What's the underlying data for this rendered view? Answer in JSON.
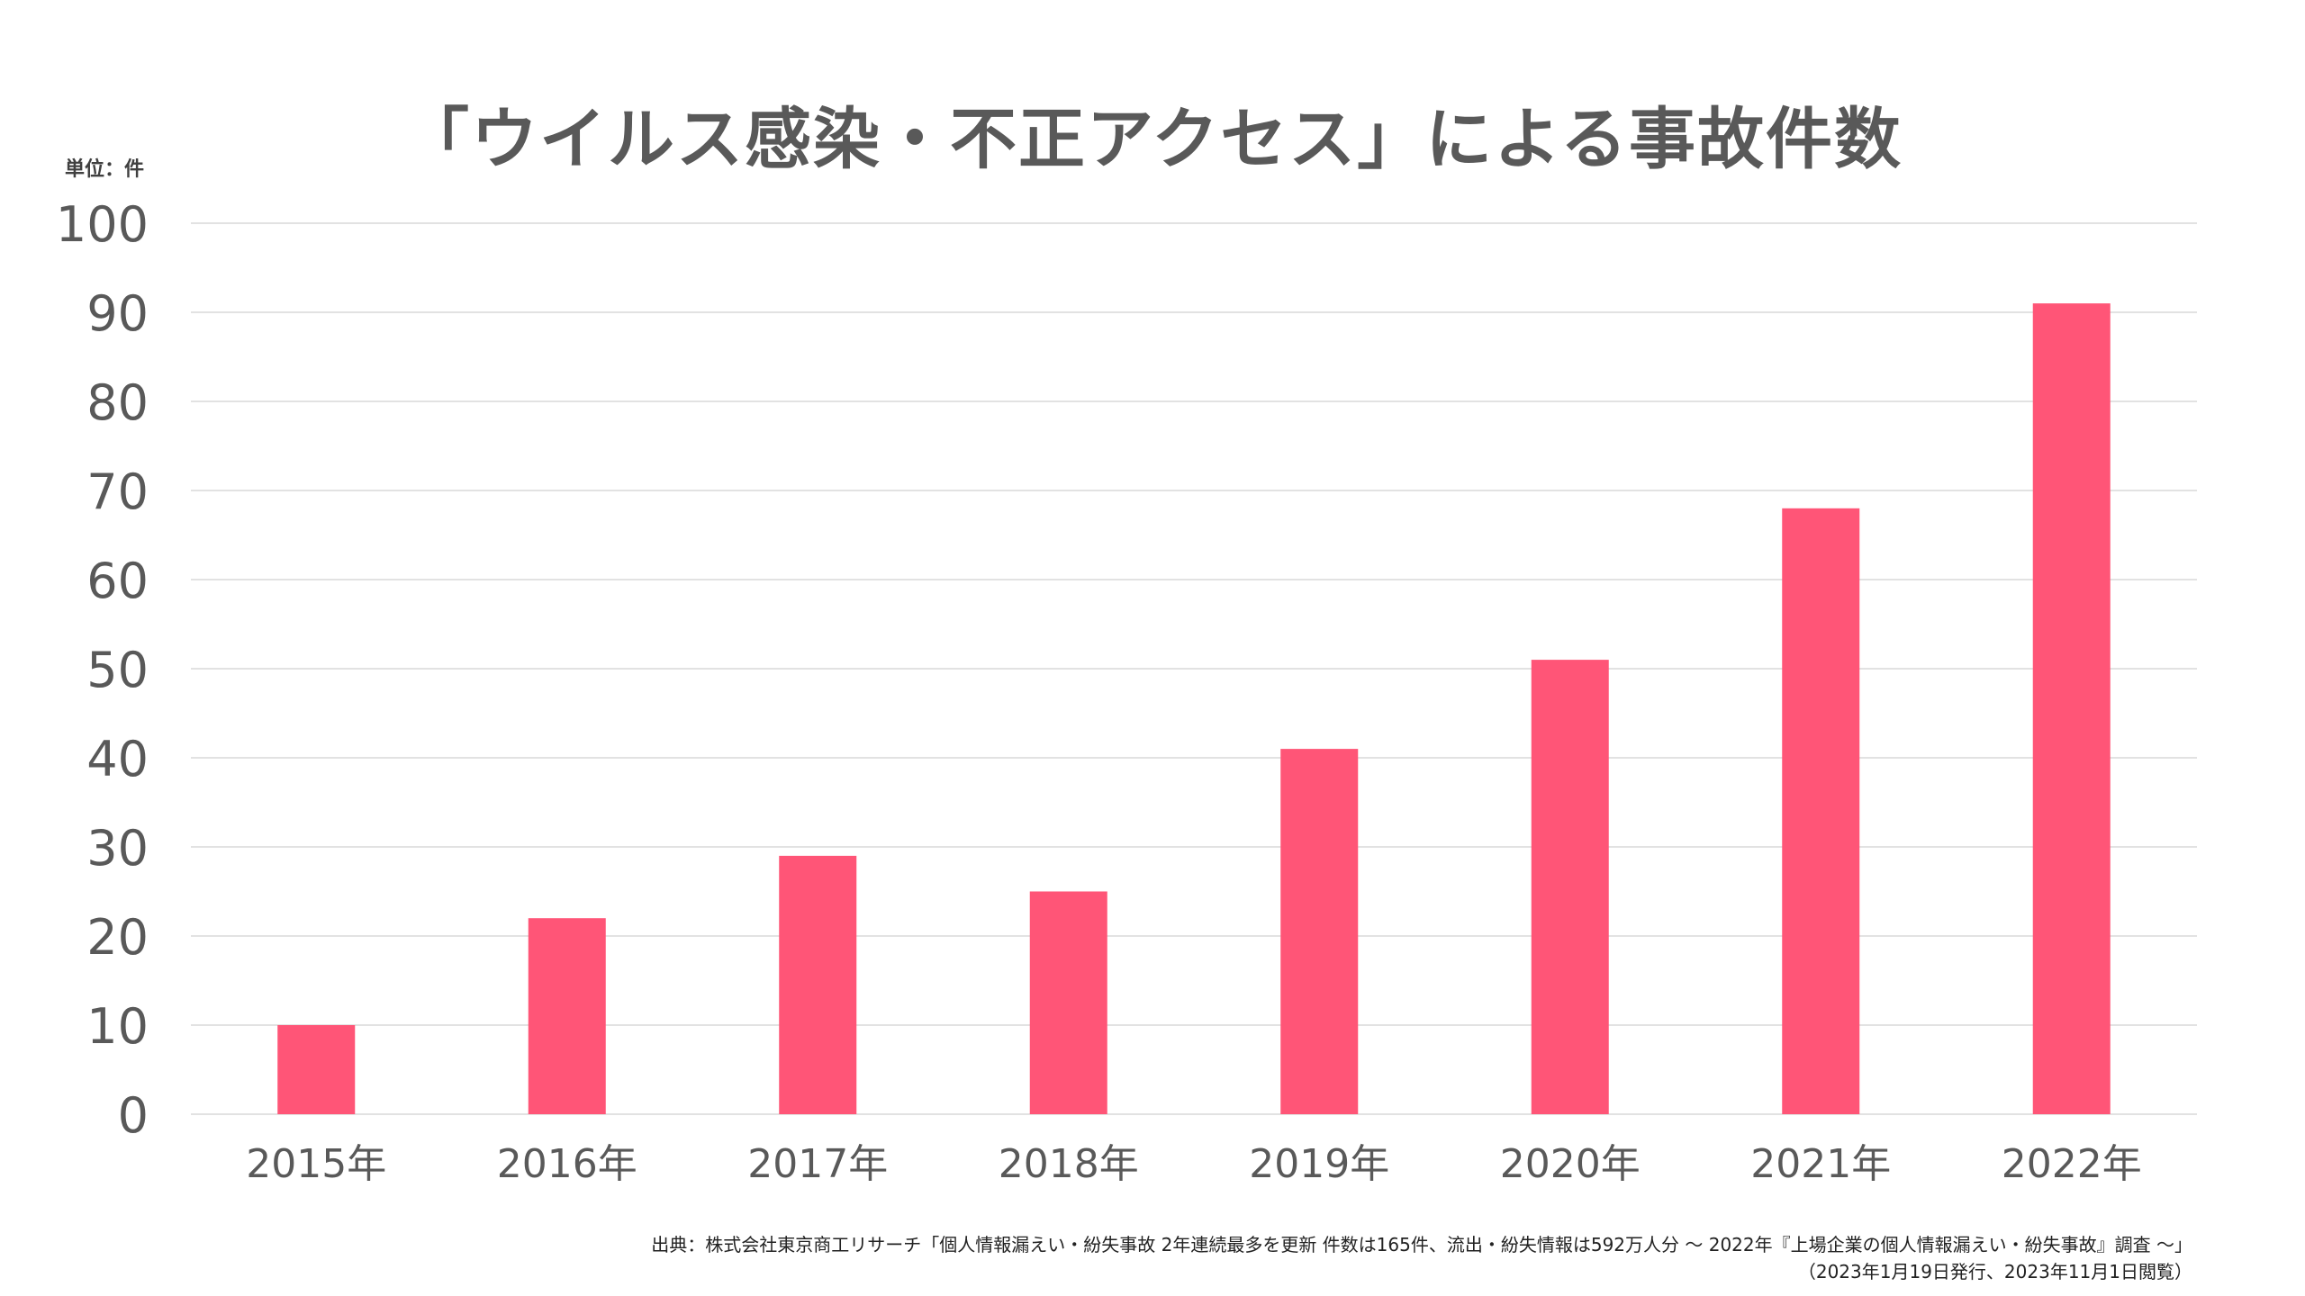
{
  "title": "「ウイルス感染・不正アクセス」による事故件数",
  "unit_label": "単位：件",
  "source": {
    "line1": "出典：株式会社東京商工リサーチ「個人情報漏えい・紛失事故 2年連続最多を更新 件数は165件、流出・紛失情報は592万人分 〜 2022年『上場企業の個人情報漏えい・紛失事故』調査 〜」",
    "line2": "（2023年1月19日発行、2023年11月1日閲覧）"
  },
  "chart_data": {
    "type": "bar",
    "categories": [
      "2015年",
      "2016年",
      "2017年",
      "2018年",
      "2019年",
      "2020年",
      "2021年",
      "2022年"
    ],
    "values": [
      10,
      22,
      29,
      25,
      41,
      51,
      68,
      91
    ],
    "ylim": [
      0,
      100
    ],
    "yticks": [
      0,
      10,
      20,
      30,
      40,
      50,
      60,
      70,
      80,
      90,
      100
    ],
    "grid": true,
    "bar_color": "#ff5577",
    "grid_color": "#d9d9d9",
    "tick_color": "#595959"
  }
}
